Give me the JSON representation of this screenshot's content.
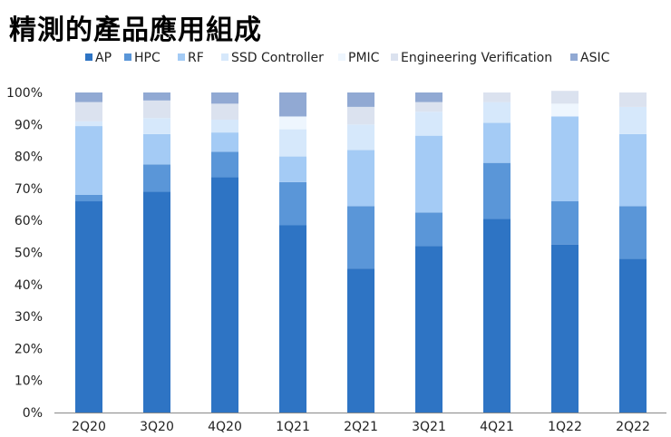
{
  "chart_data": {
    "type": "bar",
    "stacked": true,
    "title": "精測的產品應用組成",
    "xlabel": "",
    "ylabel": "",
    "ylim": [
      0,
      100
    ],
    "y_ticks": [
      "0%",
      "10%",
      "20%",
      "30%",
      "40%",
      "50%",
      "60%",
      "70%",
      "80%",
      "90%",
      "100%"
    ],
    "categories": [
      "2Q20",
      "3Q20",
      "4Q20",
      "1Q21",
      "2Q21",
      "3Q21",
      "4Q21",
      "1Q22",
      "2Q22"
    ],
    "series": [
      {
        "name": "AP",
        "color": "#2e74c4",
        "values": [
          66,
          69,
          73.5,
          58.5,
          45,
          52,
          60.5,
          52.5,
          48
        ]
      },
      {
        "name": "HPC",
        "color": "#5a96d8",
        "values": [
          2,
          8.5,
          8,
          13.5,
          19.5,
          10.5,
          17.5,
          13.5,
          16.5
        ]
      },
      {
        "name": "RF",
        "color": "#a4cbf5",
        "values": [
          21.5,
          9.5,
          6,
          8,
          17.5,
          24,
          12.5,
          26.5,
          22.5
        ]
      },
      {
        "name": "SSD Controller",
        "color": "#d6e8fb",
        "values": [
          1.5,
          5,
          4,
          8.5,
          8,
          7.5,
          6.5,
          0,
          8.5
        ]
      },
      {
        "name": "PMIC",
        "color": "#eef6fe",
        "values": [
          0,
          0,
          0,
          4,
          0,
          0,
          0,
          4,
          0
        ]
      },
      {
        "name": "Engineering Verification",
        "color": "#dbe2ef",
        "values": [
          6,
          5.5,
          5,
          0,
          5.5,
          3,
          3,
          4,
          4.5
        ]
      },
      {
        "name": "ASIC",
        "color": "#91a9d3",
        "values": [
          3,
          2.5,
          3.5,
          7.5,
          4.5,
          3,
          0,
          0,
          0
        ]
      }
    ]
  }
}
